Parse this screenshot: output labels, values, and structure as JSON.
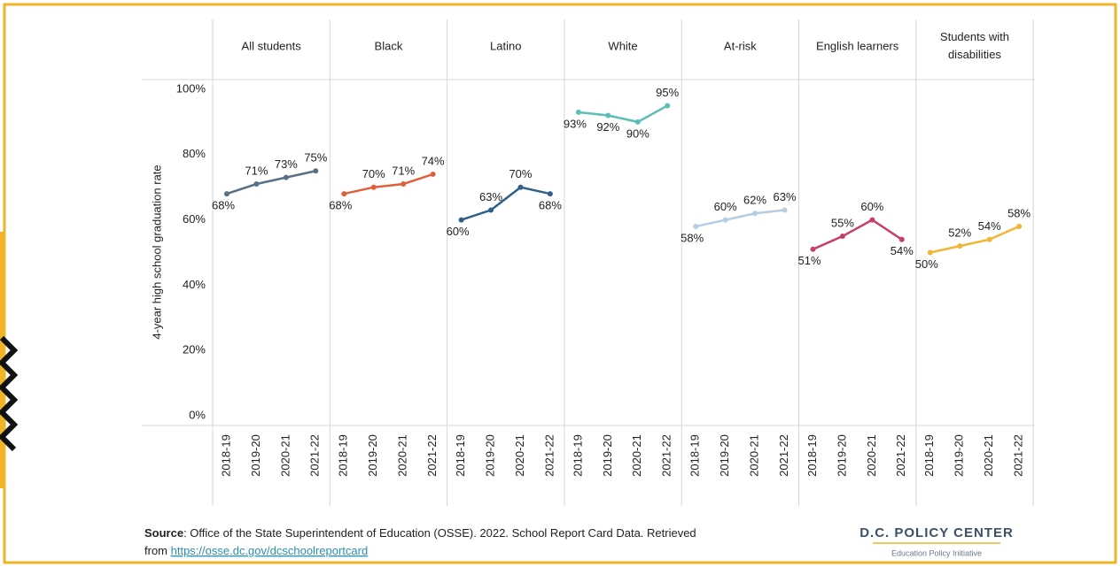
{
  "chart_data": {
    "type": "line",
    "y_label": "4-year high school graduation rate",
    "categories": [
      "2018-19",
      "2019-20",
      "2020-21",
      "2021-22"
    ],
    "ylim": [
      0,
      100
    ],
    "yticks": [
      {
        "value": 0,
        "label": "0%"
      },
      {
        "value": 20,
        "label": "20%"
      },
      {
        "value": 40,
        "label": "40%"
      },
      {
        "value": 60,
        "label": "60%"
      },
      {
        "value": 80,
        "label": "80%"
      },
      {
        "value": 100,
        "label": "100%"
      }
    ],
    "grid": false,
    "series": [
      {
        "name": "All students",
        "color": "#5a7184",
        "values": [
          68,
          71,
          73,
          75
        ],
        "value_labels": [
          "68%",
          "71%",
          "73%",
          "75%"
        ]
      },
      {
        "name": "Black",
        "color": "#e0603a",
        "values": [
          68,
          70,
          71,
          74
        ],
        "value_labels": [
          "68%",
          "70%",
          "71%",
          "74%"
        ]
      },
      {
        "name": "Latino",
        "color": "#2f5f8a",
        "values": [
          60,
          63,
          70,
          68
        ],
        "value_labels": [
          "60%",
          "63%",
          "70%",
          "68%"
        ]
      },
      {
        "name": "White",
        "color": "#5bbfb5",
        "values": [
          93,
          92,
          90,
          95
        ],
        "value_labels": [
          "93%",
          "92%",
          "90%",
          "95%"
        ]
      },
      {
        "name": "At-risk",
        "color": "#b7cde0",
        "values": [
          58,
          60,
          62,
          63
        ],
        "value_labels": [
          "58%",
          "60%",
          "62%",
          "63%"
        ]
      },
      {
        "name": "English learners",
        "color": "#c83e6a",
        "values": [
          51,
          55,
          60,
          54
        ],
        "value_labels": [
          "51%",
          "55%",
          "60%",
          "54%"
        ]
      },
      {
        "name": "Students with disabilities",
        "color": "#f2b534",
        "values": [
          50,
          52,
          54,
          58
        ],
        "value_labels": [
          "50%",
          "52%",
          "54%",
          "58%"
        ]
      }
    ],
    "source_label": "Source",
    "source_text": ": Office of the State Superintendent of Education (OSSE). 2022. School Report Card Data. Retrieved",
    "source_from": "from",
    "source_url": "https://osse.dc.gov/dcschoolreportcard",
    "logo_title": "D.C. POLICY CENTER",
    "logo_subtitle": "Education Policy Initiative"
  }
}
